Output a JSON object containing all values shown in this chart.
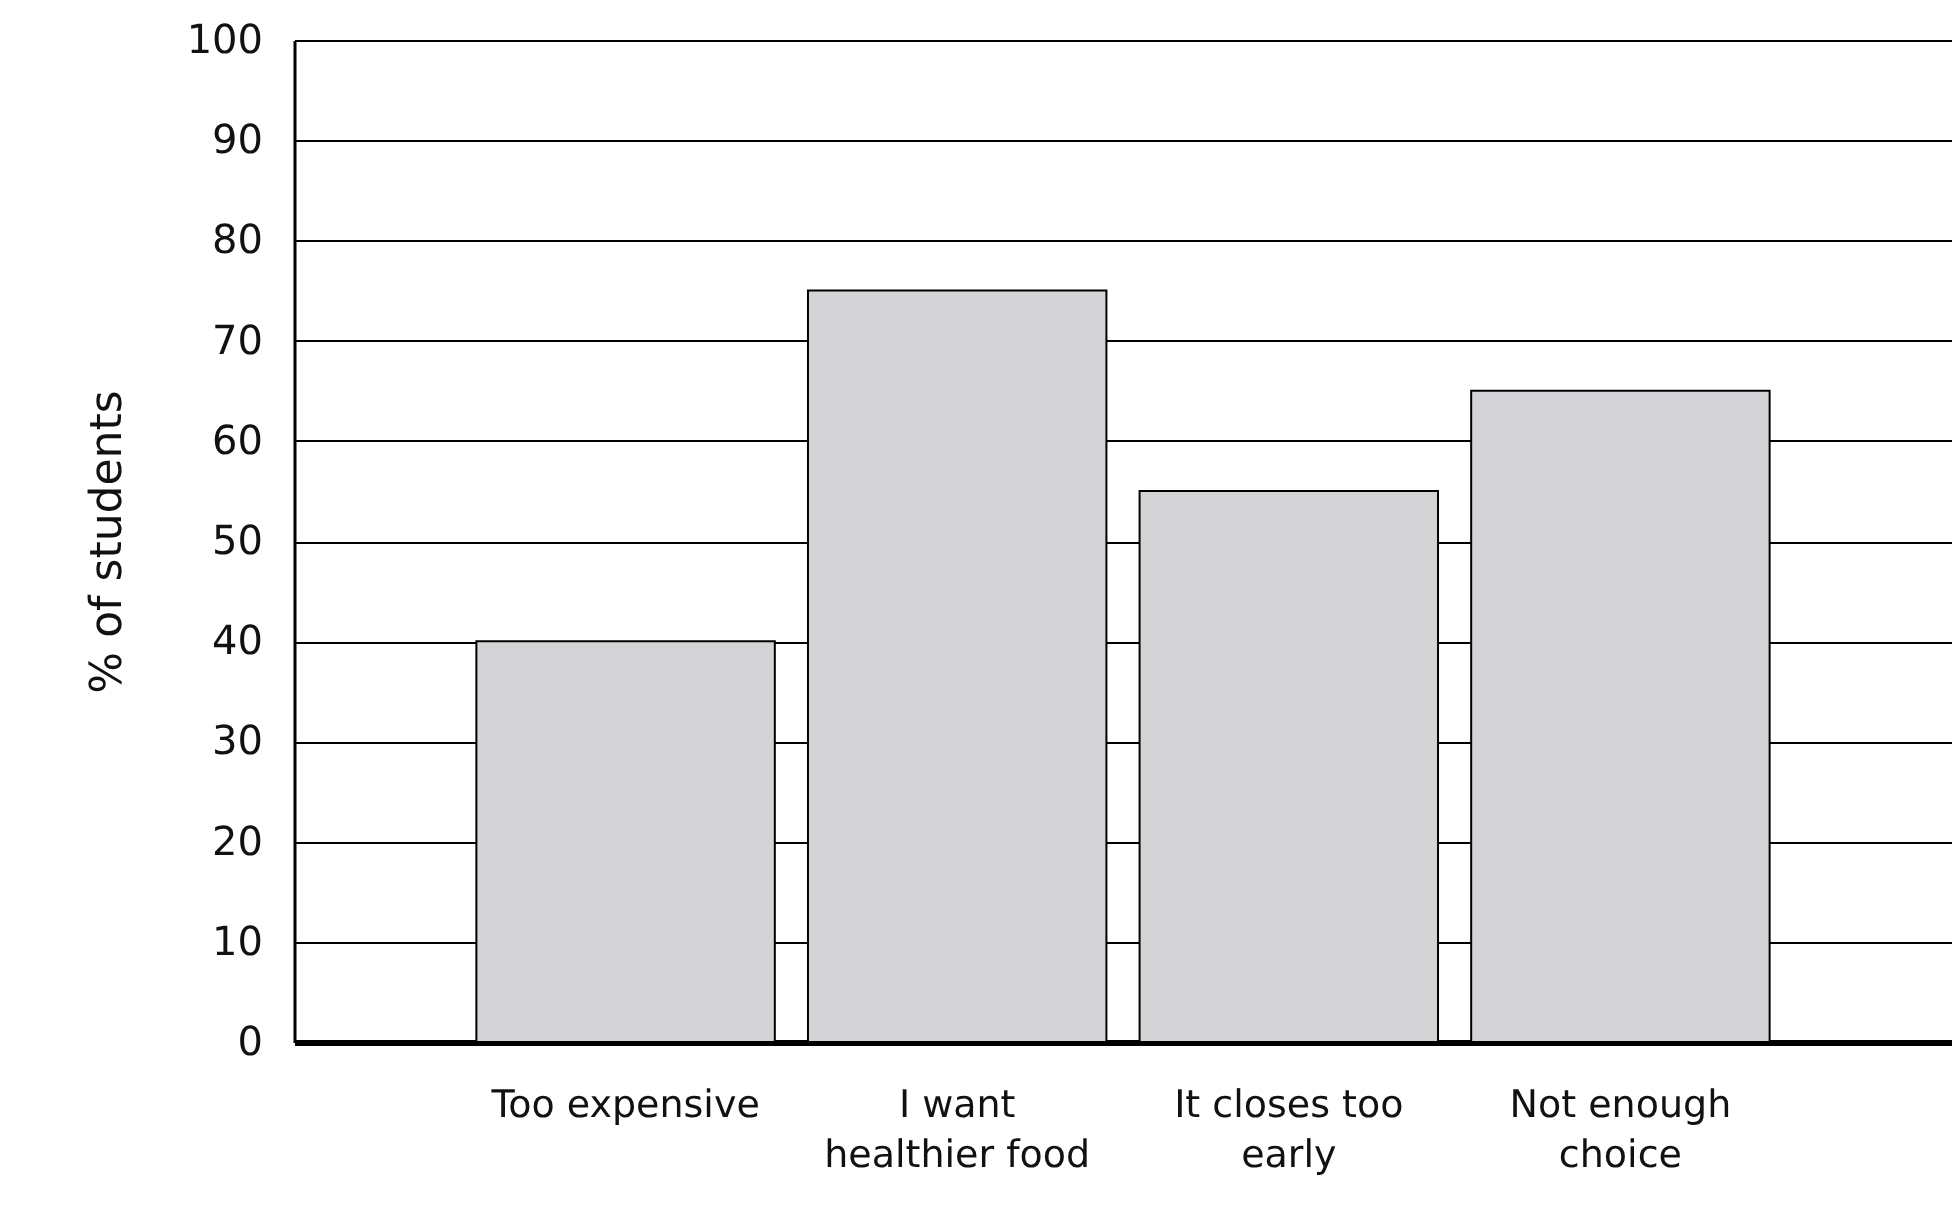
{
  "chart_data": {
    "type": "bar",
    "ylabel": "% of students",
    "categories": [
      "Too expensive",
      "I want healthier food",
      "It closes too early",
      "Not enough choice"
    ],
    "values": [
      40,
      75,
      55,
      65
    ],
    "color": "#d4d4d6",
    "ylim": [
      0,
      100
    ],
    "yticks": [
      0,
      10,
      20,
      30,
      40,
      50,
      60,
      70,
      80,
      90,
      100
    ],
    "grid": "y"
  }
}
